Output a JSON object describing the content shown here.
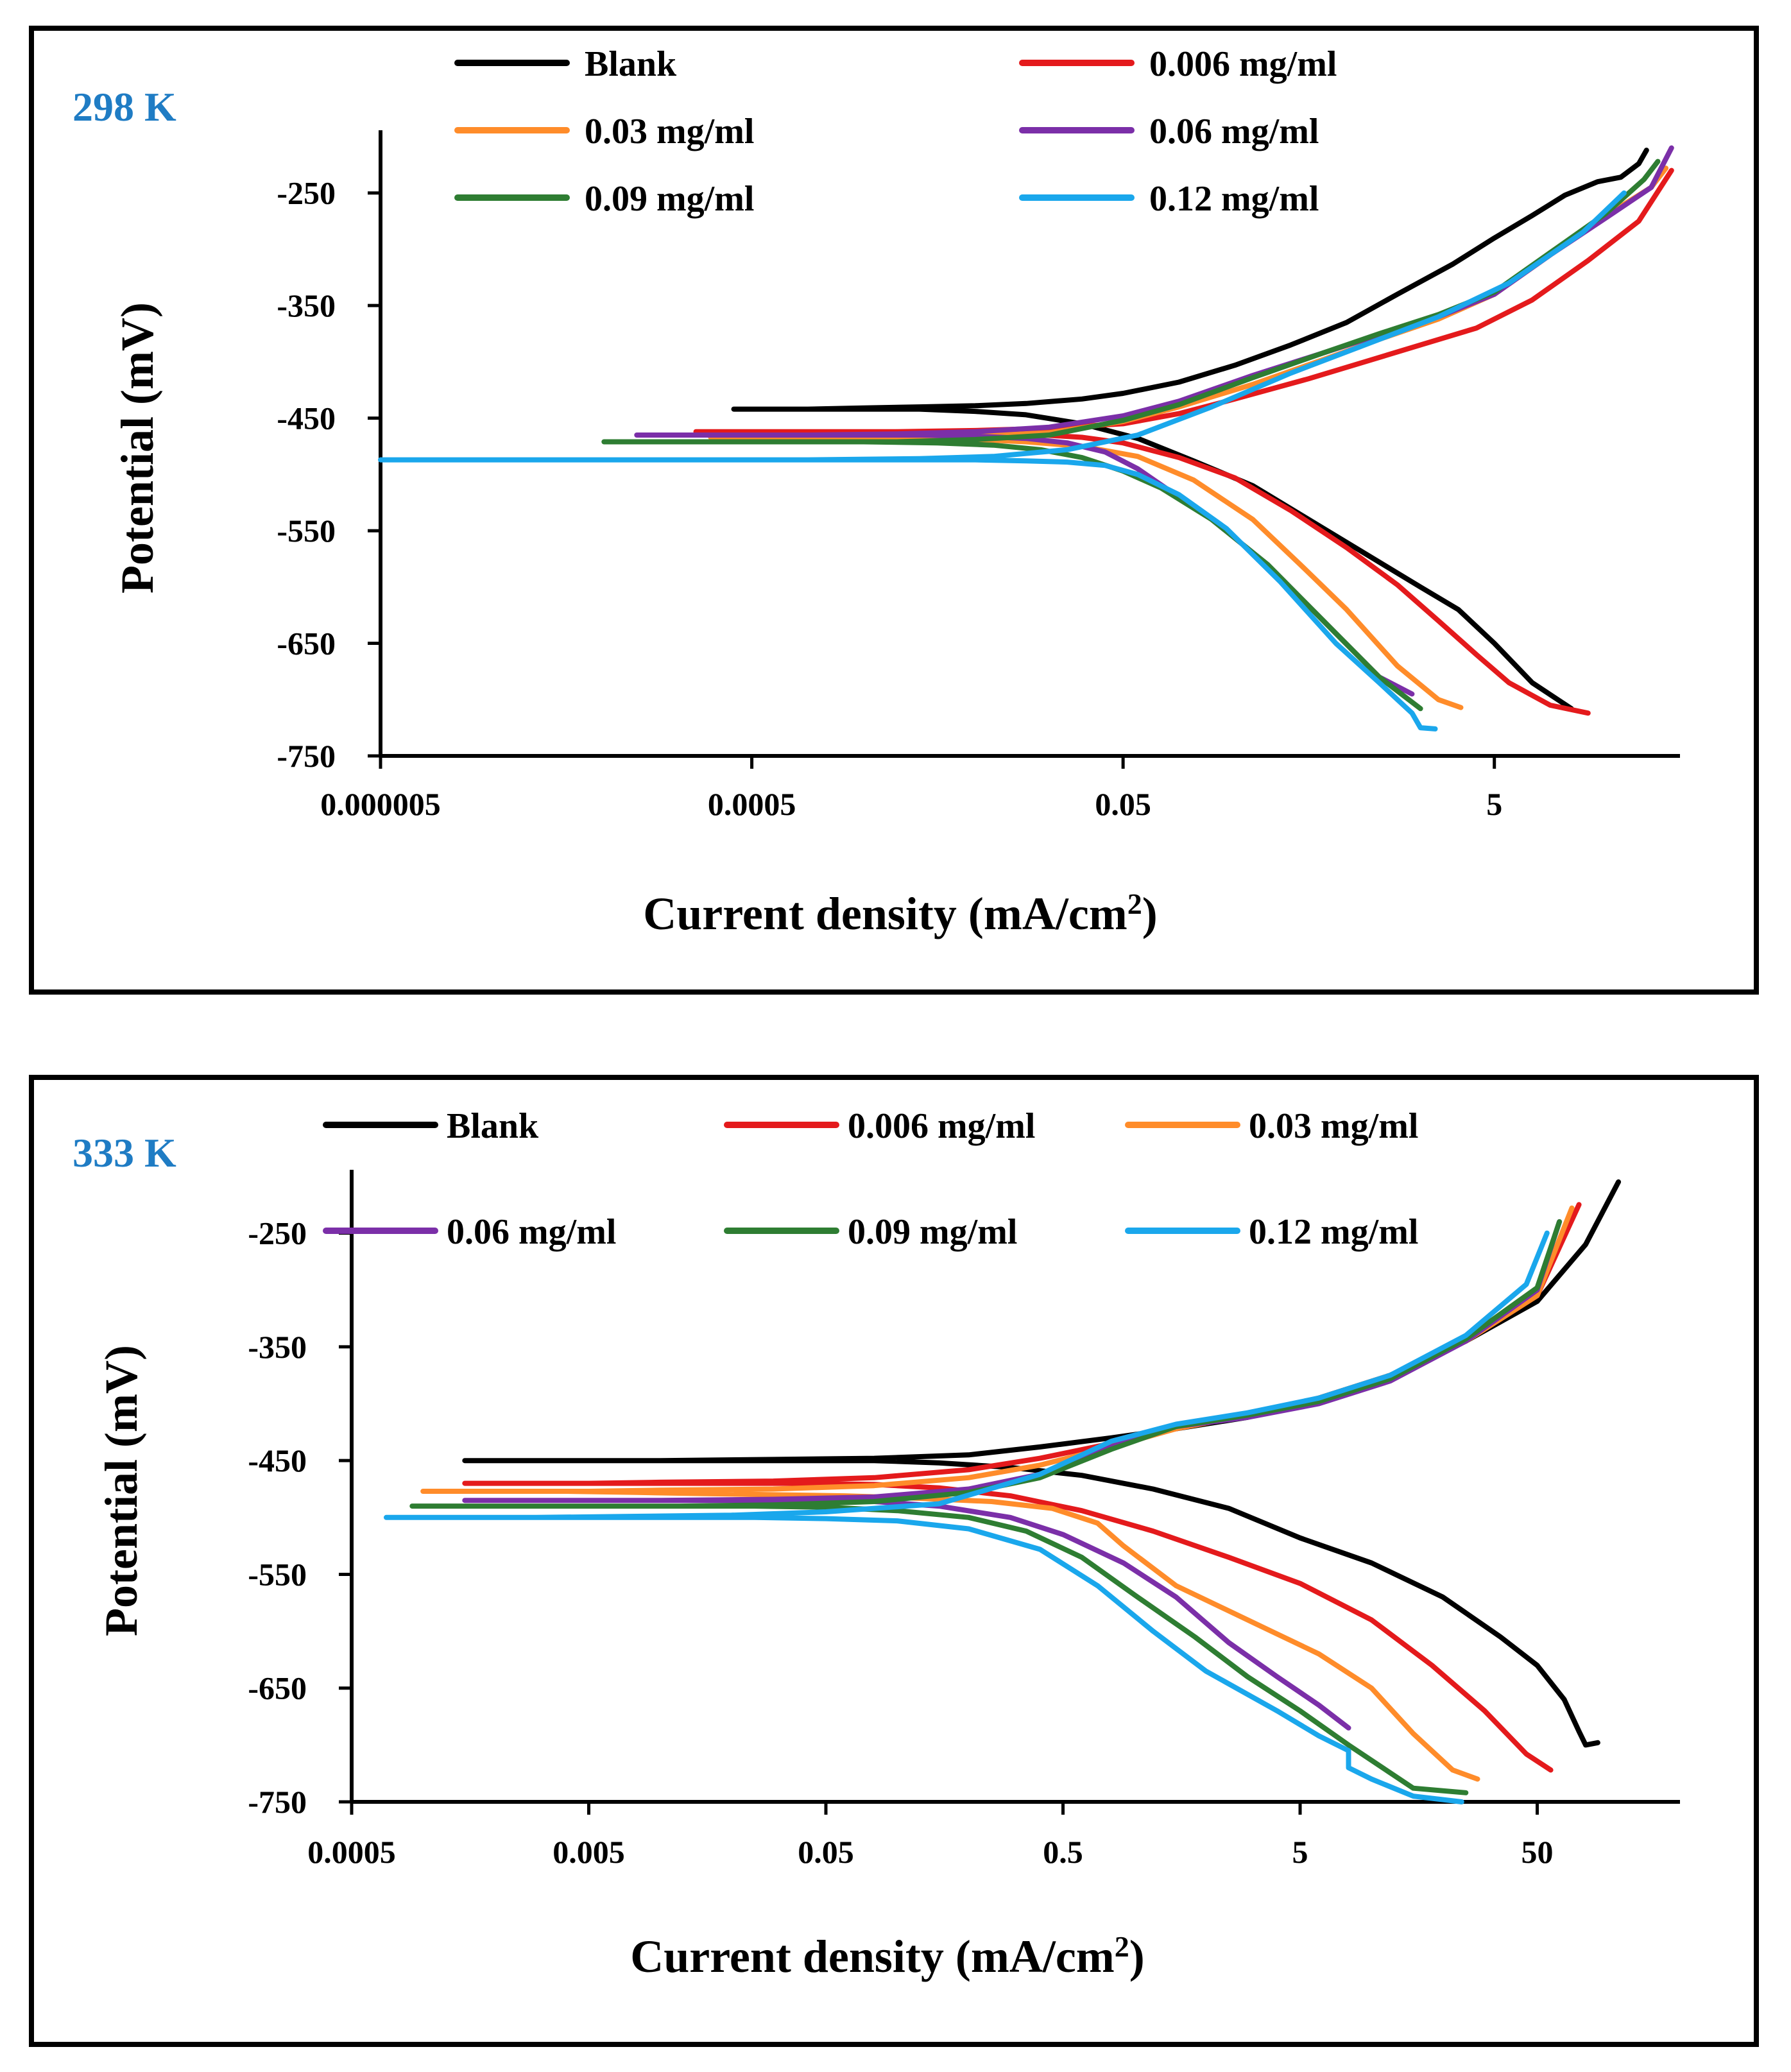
{
  "colors": {
    "blank": "#000000",
    "c0006": "#e41a1c",
    "c003": "#ff8c2a",
    "c006": "#7b2fa8",
    "c009": "#2e7d32",
    "c012": "#1aa7ec",
    "title": "#1f7cc4"
  },
  "chart_data": [
    {
      "type": "line",
      "title": "298 K",
      "xlabel": "Current density (mA/cm²)",
      "ylabel": "Potential (mV)",
      "xscale": "log10",
      "xlim": [
        5e-06,
        50
      ],
      "ylim": [
        -750,
        -200
      ],
      "xticks": [
        5e-06,
        0.0005,
        0.05,
        5
      ],
      "xtick_labels": [
        "0.000005",
        "0.0005",
        "0.05",
        "5"
      ],
      "yticks": [
        -250,
        -350,
        -450,
        -550,
        -650,
        -750
      ],
      "ytick_labels": [
        "-250",
        "-350",
        "-450",
        "-550",
        "-650",
        "-750"
      ],
      "legend_position": "top",
      "series": [
        {
          "name": "Blank",
          "color_key": "blank",
          "x": [
            13,
            8,
            5,
            3.2,
            2,
            1,
            0.5,
            0.25,
            0.12,
            0.06,
            0.03,
            0.015,
            0.008,
            0.004,
            0.002,
            0.001,
            0.0005,
            0.0004,
            0.0005,
            0.001,
            0.002,
            0.004,
            0.008,
            0.015,
            0.03,
            0.05,
            0.1,
            0.2,
            0.4,
            0.8,
            1.5,
            3,
            5,
            8,
            12,
            18,
            24,
            30,
            33
          ],
          "y": [
            -708,
            -685,
            -650,
            -620,
            -600,
            -570,
            -540,
            -510,
            -488,
            -468,
            -455,
            -447,
            -444,
            -442,
            -442,
            -442,
            -442,
            -442,
            -442,
            -442,
            -441,
            -440,
            -439,
            -437,
            -433,
            -428,
            -418,
            -403,
            -385,
            -365,
            -340,
            -313,
            -290,
            -270,
            -252,
            -240,
            -236,
            -224,
            -212
          ]
        },
        {
          "name": "0.006 mg/ml",
          "color_key": "c0006",
          "x": [
            16,
            10,
            6,
            4,
            2.5,
            1.5,
            0.8,
            0.4,
            0.2,
            0.1,
            0.05,
            0.03,
            0.015,
            0.008,
            0.004,
            0.002,
            0.001,
            0.0005,
            0.00025,
            0.0005,
            0.001,
            0.003,
            0.008,
            0.02,
            0.05,
            0.1,
            0.2,
            0.5,
            1,
            2,
            4,
            8,
            16,
            30,
            45
          ],
          "y": [
            -712,
            -705,
            -685,
            -660,
            -630,
            -598,
            -565,
            -532,
            -503,
            -485,
            -472,
            -467,
            -464,
            -463,
            -462,
            -462,
            -462,
            -462,
            -462,
            -462,
            -462,
            -462,
            -461,
            -459,
            -455,
            -446,
            -433,
            -415,
            -400,
            -385,
            -370,
            -345,
            -310,
            -275,
            -230
          ]
        },
        {
          "name": "0.03 mg/ml",
          "color_key": "c003",
          "x": [
            3.3,
            2.5,
            1.5,
            0.8,
            0.45,
            0.25,
            0.12,
            0.06,
            0.03,
            0.015,
            0.008,
            0.004,
            0.002,
            0.001,
            0.0005,
            0.0003,
            0.0005,
            0.001,
            0.003,
            0.008,
            0.02,
            0.05,
            0.1,
            0.25,
            0.6,
            1.2,
            2.5,
            5,
            10,
            20,
            35,
            42
          ],
          "y": [
            -707,
            -700,
            -670,
            -620,
            -580,
            -540,
            -505,
            -484,
            -475,
            -471,
            -469,
            -468,
            -467,
            -467,
            -467,
            -467,
            -467,
            -467,
            -467,
            -466,
            -463,
            -453,
            -440,
            -420,
            -398,
            -380,
            -362,
            -340,
            -305,
            -270,
            -245,
            -228
          ]
        },
        {
          "name": "0.06 mg/ml",
          "color_key": "c006",
          "x": [
            1.8,
            1.2,
            0.6,
            0.3,
            0.15,
            0.09,
            0.06,
            0.04,
            0.025,
            0.015,
            0.008,
            0.004,
            0.002,
            0.001,
            0.0005,
            0.0002,
            0.00012,
            0.0002,
            0.0005,
            0.001,
            0.003,
            0.008,
            0.02,
            0.05,
            0.1,
            0.25,
            0.6,
            1.2,
            2.5,
            5,
            10,
            20,
            35,
            45
          ],
          "y": [
            -695,
            -680,
            -630,
            -580,
            -540,
            -515,
            -495,
            -480,
            -472,
            -468,
            -466,
            -465,
            -465,
            -465,
            -465,
            -465,
            -465,
            -465,
            -465,
            -465,
            -464,
            -462,
            -458,
            -448,
            -435,
            -412,
            -392,
            -376,
            -360,
            -340,
            -305,
            -272,
            -245,
            -210
          ]
        },
        {
          "name": "0.09 mg/ml",
          "color_key": "c009",
          "x": [
            2,
            1.2,
            0.6,
            0.3,
            0.15,
            0.08,
            0.05,
            0.03,
            0.018,
            0.01,
            0.005,
            0.002,
            0.001,
            0.0005,
            0.0002,
            8e-05,
            0.0002,
            0.0005,
            0.001,
            0.003,
            0.008,
            0.02,
            0.05,
            0.1,
            0.25,
            0.6,
            1.2,
            2.5,
            5,
            10,
            20,
            32,
            38
          ],
          "y": [
            -708,
            -680,
            -630,
            -580,
            -540,
            -512,
            -497,
            -485,
            -478,
            -474,
            -472,
            -471,
            -471,
            -471,
            -471,
            -471,
            -471,
            -471,
            -471,
            -471,
            -469,
            -465,
            -452,
            -438,
            -414,
            -392,
            -375,
            -358,
            -338,
            -303,
            -268,
            -238,
            -222
          ]
        },
        {
          "name": "0.12 mg/ml",
          "color_key": "c012",
          "x": [
            2.4,
            2,
            1.8,
            1.2,
            0.7,
            0.35,
            0.18,
            0.1,
            0.06,
            0.04,
            0.025,
            0.015,
            0.008,
            0.004,
            0.002,
            0.001,
            0.0005,
            0.0002,
            8e-05,
            2e-05,
            5e-06,
            1e-05,
            5e-05,
            0.0002,
            0.001,
            0.004,
            0.01,
            0.025,
            0.06,
            0.15,
            0.4,
            1,
            2.5,
            6,
            15,
            25
          ],
          "y": [
            -726,
            -725,
            -712,
            -685,
            -650,
            -595,
            -548,
            -518,
            -500,
            -492,
            -489,
            -488,
            -487,
            -487,
            -487,
            -487,
            -487,
            -487,
            -487,
            -487,
            -487,
            -487,
            -487,
            -487,
            -487,
            -486,
            -484,
            -478,
            -465,
            -440,
            -410,
            -385,
            -360,
            -330,
            -285,
            -250
          ]
        }
      ]
    },
    {
      "type": "line",
      "title": "333 K",
      "xlabel": "Current density (mA/cm²)",
      "ylabel": "Potential (mV)",
      "xscale": "log10",
      "xlim": [
        0.0005,
        200
      ],
      "ylim": [
        -750,
        -200
      ],
      "xticks": [
        0.0005,
        0.005,
        0.05,
        0.5,
        5,
        50
      ],
      "xtick_labels": [
        "0.0005",
        "0.005",
        "0.05",
        "0.5",
        "5",
        "50"
      ],
      "yticks": [
        -250,
        -350,
        -450,
        -550,
        -650,
        -750
      ],
      "ytick_labels": [
        "-250",
        "-350",
        "-450",
        "-550",
        "-650",
        "-750"
      ],
      "legend_position": "top",
      "series": [
        {
          "name": "Blank",
          "color_key": "blank",
          "x": [
            90,
            80,
            75,
            65,
            50,
            35,
            20,
            10,
            5,
            2.5,
            1.2,
            0.6,
            0.3,
            0.15,
            0.08,
            0.04,
            0.02,
            0.01,
            0.005,
            0.002,
            0.0015,
            0.002,
            0.005,
            0.01,
            0.03,
            0.08,
            0.2,
            0.4,
            0.8,
            1.5,
            3,
            6,
            12,
            25,
            50,
            80,
            110
          ],
          "y": [
            -698,
            -700,
            -688,
            -660,
            -630,
            -605,
            -570,
            -540,
            -518,
            -492,
            -475,
            -463,
            -456,
            -452,
            -450,
            -450,
            -450,
            -450,
            -450,
            -450,
            -450,
            -450,
            -450,
            -450,
            -449,
            -448,
            -445,
            -438,
            -430,
            -422,
            -412,
            -395,
            -375,
            -345,
            -310,
            -260,
            -205
          ]
        },
        {
          "name": "0.006 mg/ml",
          "color_key": "c0006",
          "x": [
            57,
            45,
            30,
            18,
            10,
            5,
            2.5,
            1.2,
            0.6,
            0.3,
            0.15,
            0.08,
            0.04,
            0.02,
            0.01,
            0.005,
            0.003,
            0.0015,
            0.003,
            0.005,
            0.01,
            0.03,
            0.08,
            0.2,
            0.4,
            0.8,
            1.5,
            3,
            6,
            12,
            25,
            50,
            75
          ],
          "y": [
            -722,
            -708,
            -670,
            -630,
            -590,
            -558,
            -535,
            -512,
            -494,
            -481,
            -474,
            -471,
            -470,
            -470,
            -470,
            -470,
            -470,
            -470,
            -470,
            -470,
            -469,
            -468,
            -465,
            -458,
            -448,
            -435,
            -422,
            -410,
            -395,
            -375,
            -345,
            -305,
            -225
          ]
        },
        {
          "name": "0.03 mg/ml",
          "color_key": "c003",
          "x": [
            28,
            22,
            15,
            10,
            6,
            3,
            1.5,
            0.9,
            0.7,
            0.45,
            0.25,
            0.12,
            0.06,
            0.03,
            0.015,
            0.008,
            0.004,
            0.002,
            0.001,
            0.002,
            0.005,
            0.01,
            0.03,
            0.08,
            0.2,
            0.4,
            0.8,
            1.5,
            3,
            6,
            12,
            25,
            50,
            70
          ],
          "y": [
            -730,
            -722,
            -690,
            -650,
            -620,
            -590,
            -560,
            -525,
            -505,
            -492,
            -486,
            -483,
            -481,
            -480,
            -479,
            -478,
            -477,
            -477,
            -477,
            -477,
            -477,
            -476,
            -475,
            -472,
            -465,
            -454,
            -438,
            -422,
            -410,
            -395,
            -375,
            -345,
            -305,
            -228
          ]
        },
        {
          "name": "0.06 mg/ml",
          "color_key": "c006",
          "x": [
            8,
            6,
            4,
            2.5,
            1.5,
            0.9,
            0.5,
            0.3,
            0.15,
            0.08,
            0.04,
            0.02,
            0.01,
            0.005,
            0.002,
            0.0015,
            0.002,
            0.005,
            0.01,
            0.03,
            0.08,
            0.2,
            0.4,
            0.8,
            1.5,
            3,
            6,
            12,
            25,
            50,
            62
          ],
          "y": [
            -685,
            -665,
            -640,
            -610,
            -570,
            -540,
            -515,
            -500,
            -490,
            -486,
            -485,
            -485,
            -485,
            -485,
            -485,
            -485,
            -485,
            -485,
            -485,
            -484,
            -482,
            -475,
            -462,
            -438,
            -420,
            -412,
            -400,
            -380,
            -345,
            -300,
            -240
          ]
        },
        {
          "name": "0.09 mg/ml",
          "color_key": "c009",
          "x": [
            25,
            15,
            8,
            5,
            3,
            1.8,
            1,
            0.6,
            0.35,
            0.2,
            0.1,
            0.05,
            0.025,
            0.012,
            0.006,
            0.003,
            0.0015,
            0.0009,
            0.0015,
            0.003,
            0.006,
            0.012,
            0.03,
            0.08,
            0.2,
            0.4,
            0.8,
            1.5,
            3,
            6,
            12,
            25,
            50,
            62
          ],
          "y": [
            -742,
            -738,
            -700,
            -670,
            -640,
            -605,
            -568,
            -535,
            -512,
            -500,
            -494,
            -491,
            -490,
            -490,
            -490,
            -490,
            -490,
            -490,
            -490,
            -490,
            -490,
            -490,
            -489,
            -486,
            -478,
            -465,
            -440,
            -420,
            -410,
            -398,
            -378,
            -343,
            -298,
            -240
          ]
        },
        {
          "name": "0.12 mg/ml",
          "color_key": "c012",
          "x": [
            24,
            15,
            10,
            8,
            8,
            6,
            4,
            2,
            1.2,
            0.7,
            0.4,
            0.2,
            0.1,
            0.05,
            0.025,
            0.012,
            0.006,
            0.003,
            0.0015,
            0.0007,
            0.0015,
            0.003,
            0.008,
            0.02,
            0.05,
            0.15,
            0.4,
            0.8,
            1.5,
            3,
            6,
            12,
            25,
            45,
            55
          ],
          "y": [
            -750,
            -745,
            -730,
            -720,
            -705,
            -692,
            -670,
            -635,
            -600,
            -560,
            -528,
            -510,
            -503,
            -501,
            -500,
            -500,
            -500,
            -500,
            -500,
            -500,
            -500,
            -500,
            -499,
            -498,
            -495,
            -488,
            -462,
            -433,
            -418,
            -408,
            -395,
            -375,
            -340,
            -295,
            -250
          ]
        }
      ]
    }
  ],
  "panels": [
    {
      "title": "298 K",
      "xlabel_main": "Current density (mA/cm",
      "xlabel_sup": "2",
      "xlabel_end": ")",
      "ylabel": "Potential (mV)"
    },
    {
      "title": "333 K",
      "xlabel_main": "Current density (mA/cm",
      "xlabel_sup": "2",
      "xlabel_end": ")",
      "ylabel": "Potential (mV)"
    }
  ]
}
